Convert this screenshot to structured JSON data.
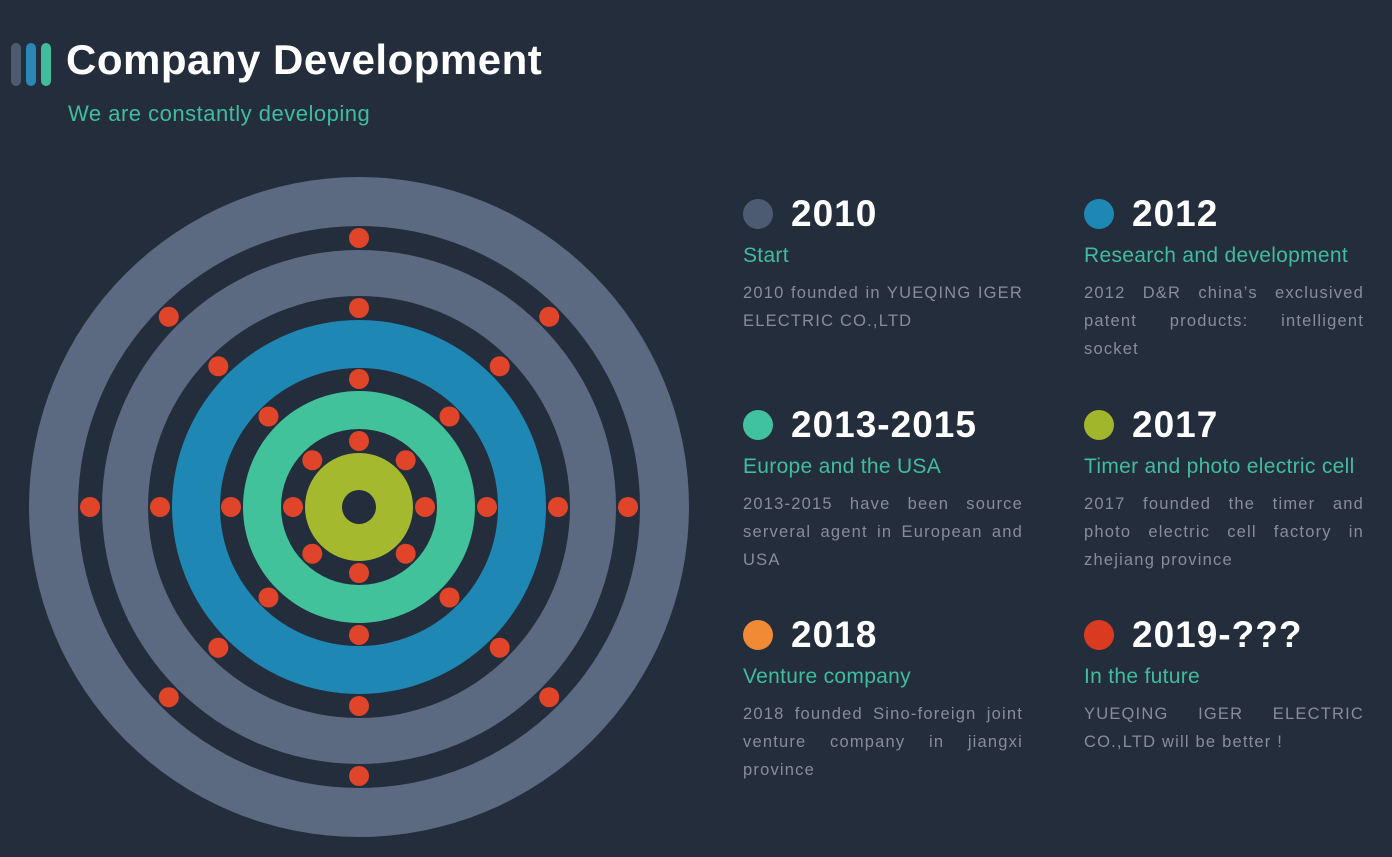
{
  "header": {
    "title": "Company Development",
    "subtitle": "We are constantly developing",
    "logo_bar_colors": [
      "#4d5a70",
      "#2b87b8",
      "#41bd9c"
    ]
  },
  "graphic": {
    "name": "concentric-orbit-rings",
    "background": "#242d3b",
    "dot_color": "#e0452a",
    "dot_radius": 10,
    "rings": [
      {
        "r": 330,
        "fill": "#5b6a81"
      },
      {
        "r": 281,
        "fill": "#242d3b"
      },
      {
        "r": 257,
        "fill": "#5b6a81"
      },
      {
        "r": 211,
        "fill": "#242d3b"
      },
      {
        "r": 187,
        "fill": "#1e87b4"
      },
      {
        "r": 139,
        "fill": "#242d3b"
      },
      {
        "r": 116,
        "fill": "#42c29b"
      },
      {
        "r": 78,
        "fill": "#242d3b"
      },
      {
        "r": 54,
        "fill": "#a5b92e"
      },
      {
        "r": 17,
        "fill": "#242d3b"
      }
    ],
    "orbits": [
      {
        "radius": 66,
        "dots": 8
      },
      {
        "radius": 128,
        "dots": 8
      },
      {
        "radius": 199,
        "dots": 8
      },
      {
        "radius": 269,
        "dots": 8
      }
    ]
  },
  "timeline": {
    "items": [
      {
        "year": "2010",
        "color": "#4d5b72",
        "title": "Start",
        "description": "2010 founded in YUEQING IGER ELECTRIC CO.,LTD"
      },
      {
        "year": "2012",
        "color": "#1e87b4",
        "title": "Research and development",
        "description": "2012 D&R china’s exclusived patent products: intelligent socket"
      },
      {
        "year": "2013-2015",
        "color": "#3fc29d",
        "title": "Europe and the USA",
        "description": "2013-2015 have been source serveral agent in European and USA"
      },
      {
        "year": "2017",
        "color": "#a2b62c",
        "title": "Timer and photo electric cell",
        "description": "2017 founded the timer and photo electric cell factory in zhejiang province"
      },
      {
        "year": "2018",
        "color": "#f08a34",
        "title": "Venture company",
        "description": "2018 founded Sino-foreign joint venture company in jiangxi province"
      },
      {
        "year": "2019-???",
        "color": "#da3b20",
        "title": "In the future",
        "description": "YUEQING IGER ELECTRIC CO.,LTD will be better !"
      }
    ]
  }
}
